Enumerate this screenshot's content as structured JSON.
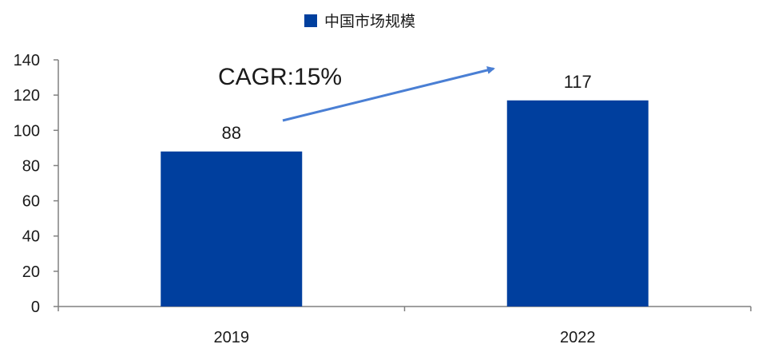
{
  "chart_data": {
    "type": "bar",
    "categories": [
      "2019",
      "2022"
    ],
    "series": [
      {
        "name": "中国市场规模",
        "values": [
          88,
          117
        ]
      }
    ],
    "data_labels": [
      "88",
      "117"
    ],
    "yticks": [
      "0",
      "20",
      "40",
      "60",
      "80",
      "100",
      "120",
      "140"
    ],
    "ylim": [
      0,
      140
    ],
    "legend_position": "top-center",
    "annotation": "CAGR:15%",
    "colors": {
      "bar": "#003f9e",
      "arrow": "#4a7fd4",
      "axis": "#808080"
    }
  }
}
